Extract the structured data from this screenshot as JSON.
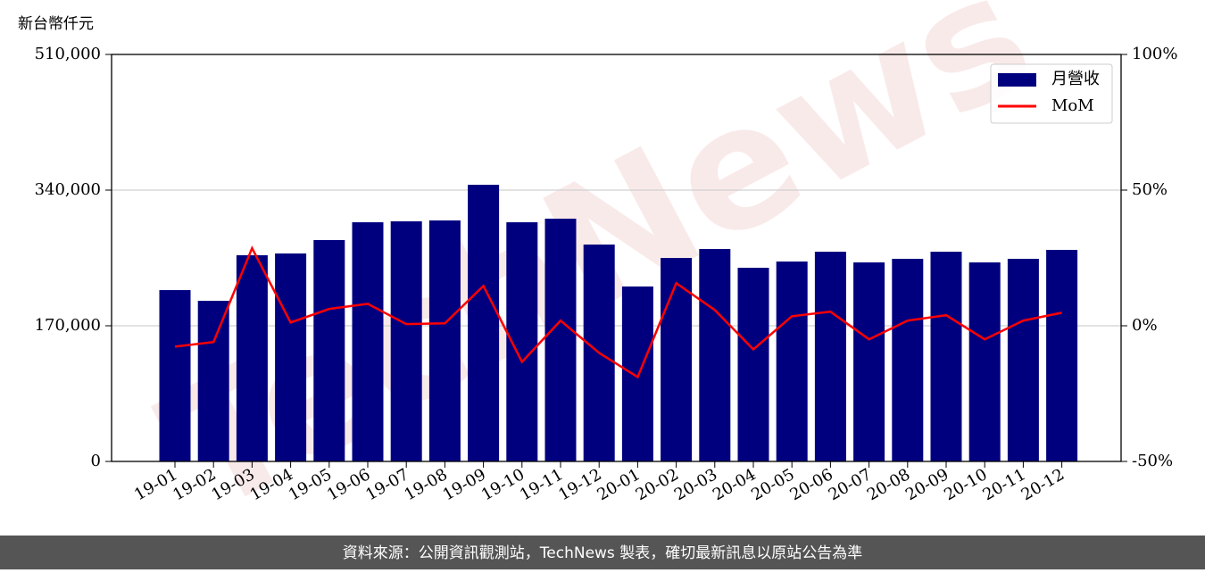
{
  "chart_data": {
    "type": "bar_line",
    "y_axis_label": "新台幣仟元",
    "watermark": "TechNews",
    "categories": [
      "19-01",
      "19-02",
      "19-03",
      "19-04",
      "19-05",
      "19-06",
      "19-07",
      "19-08",
      "19-09",
      "19-10",
      "19-11",
      "19-12",
      "20-01",
      "20-02",
      "20-03",
      "20-04",
      "20-05",
      "20-06",
      "20-07",
      "20-08",
      "20-09",
      "20-10",
      "20-11",
      "20-12"
    ],
    "series": [
      {
        "name": "月營收",
        "color": "#00007f",
        "type": "bar",
        "values": [
          214700,
          201300,
          258400,
          260600,
          277400,
          299700,
          300900,
          302000,
          346700,
          299700,
          304200,
          271800,
          219200,
          255000,
          266200,
          242700,
          250500,
          262800,
          249400,
          253900,
          262800,
          249400,
          253900,
          265100
        ]
      },
      {
        "name": "MoM",
        "color": "#ff0000",
        "type": "line",
        "axis": "y2",
        "values": [
          -7.7,
          -6.0,
          28.6,
          1.2,
          6.2,
          8.1,
          0.6,
          0.9,
          14.7,
          -13.3,
          1.9,
          -10.0,
          -18.9,
          15.7,
          5.8,
          -8.7,
          3.5,
          5.2,
          -5.0,
          1.9,
          3.9,
          -5.0,
          1.9,
          4.8
        ]
      }
    ],
    "ylim": [
      0,
      510000
    ],
    "yticks": [
      0,
      {
        "value": 170000,
        "label": "170,000"
      },
      {
        "value": 340000,
        "label": "340,000"
      },
      {
        "value": 510000,
        "label": "510,000"
      }
    ],
    "y2lim": [
      -50,
      100
    ],
    "y2ticks": [
      {
        "value": -50,
        "label": "-50%"
      },
      {
        "value": 0,
        "label": "0%"
      },
      {
        "value": 50,
        "label": "50%"
      },
      {
        "value": 100,
        "label": "100%"
      }
    ],
    "grid": true,
    "legend": "upper right",
    "footer": "資料來源：公開資訊觀測站，TechNews 製表，確切最新訊息以原站公告為準"
  }
}
